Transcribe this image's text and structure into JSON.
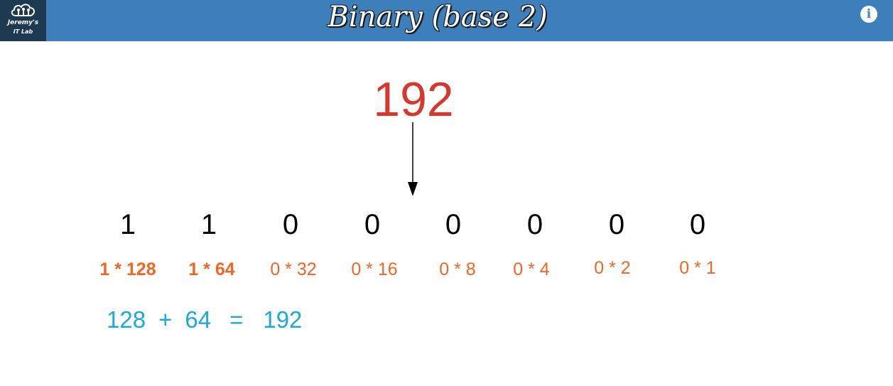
{
  "header": {
    "logo_line1": "Jeremy's",
    "logo_line2": "IT Lab",
    "title": "Binary (base 2)",
    "info_label": "i"
  },
  "decimal": "192",
  "bits": [
    "1",
    "1",
    "0",
    "0",
    "0",
    "0",
    "0",
    "0"
  ],
  "calculations": [
    "1 * 128",
    "1 * 64",
    "0 * 32",
    "0 * 16",
    "0 * 8",
    "0 * 4",
    "0 * 2",
    "0 * 1"
  ],
  "sum": {
    "term1": "128",
    "plus": "+",
    "term2": "64",
    "equals": "=",
    "result": "192"
  },
  "colors": {
    "header_bg": "#3d7fba",
    "logo_bg": "#1e3a53",
    "decimal": "#d5382d",
    "calculation": "#f26522",
    "sum": "#1aa8e0"
  }
}
